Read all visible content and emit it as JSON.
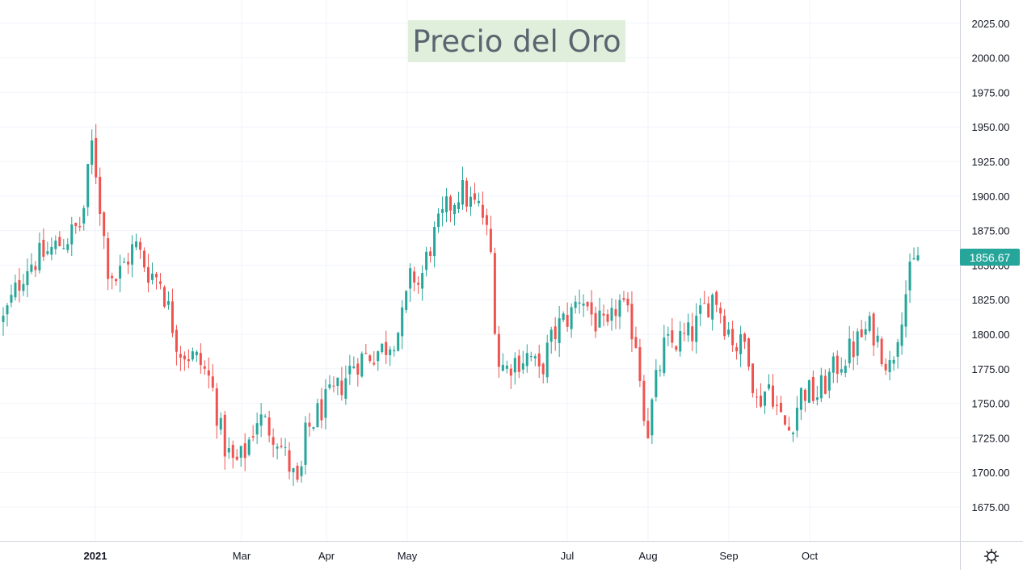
{
  "chart_data": {
    "type": "candlestick",
    "title": "Precio del Oro",
    "current_price": "1856.67",
    "x_tick_labels": [
      "2021",
      "Mar",
      "Apr",
      "May",
      "Jul",
      "Aug",
      "Sep",
      "Oct"
    ],
    "y_tick_labels": [
      "1675.00",
      "1700.00",
      "1725.00",
      "1750.00",
      "1775.00",
      "1800.00",
      "1825.00",
      "1850.00",
      "1875.00",
      "1900.00",
      "1925.00",
      "1950.00",
      "1975.00",
      "2000.00",
      "2025.00"
    ],
    "ylim": [
      1655,
      2040
    ],
    "grid": true,
    "colors": {
      "up": "#26a69a",
      "down": "#ef5350",
      "grid": "#f0f3fa",
      "axis_text": "#131722",
      "title_bg": "#e0efdc",
      "title_text": "#5a6570",
      "price_tag": "#26a69a"
    },
    "candle_count": 228,
    "close_anchors": [
      [
        0,
        1810
      ],
      [
        10,
        1850
      ],
      [
        20,
        1860
      ],
      [
        28,
        1870
      ],
      [
        34,
        1880
      ],
      [
        39,
        1945
      ],
      [
        40,
        1920
      ],
      [
        45,
        1850
      ],
      [
        49,
        1840
      ],
      [
        57,
        1865
      ],
      [
        63,
        1845
      ],
      [
        68,
        1840
      ],
      [
        76,
        1790
      ],
      [
        85,
        1780
      ],
      [
        90,
        1765
      ],
      [
        95,
        1722
      ],
      [
        100,
        1705
      ],
      [
        104,
        1712
      ],
      [
        110,
        1740
      ],
      [
        118,
        1728
      ],
      [
        125,
        1700
      ],
      [
        128,
        1685
      ],
      [
        131,
        1728
      ],
      [
        137,
        1745
      ],
      [
        145,
        1760
      ],
      [
        152,
        1780
      ],
      [
        158,
        1785
      ],
      [
        165,
        1790
      ],
      [
        172,
        1805
      ],
      [
        177,
        1845
      ],
      [
        180,
        1835
      ],
      [
        185,
        1865
      ],
      [
        192,
        1890
      ],
      [
        198,
        1905
      ],
      [
        202,
        1895
      ],
      [
        207,
        1890
      ],
      [
        211,
        1860
      ],
      [
        214,
        1780
      ],
      [
        218,
        1775
      ]
    ],
    "extra_anchors_second_half": [
      [
        220,
        1780
      ],
      [
        228,
        1785
      ],
      [
        232,
        1770
      ],
      [
        236,
        1790
      ],
      [
        240,
        1805
      ],
      [
        246,
        1815
      ],
      [
        250,
        1830
      ],
      [
        256,
        1810
      ],
      [
        262,
        1800
      ],
      [
        266,
        1825
      ],
      [
        272,
        1805
      ],
      [
        275,
        1790
      ],
      [
        276,
        1760
      ],
      [
        279,
        1730
      ],
      [
        282,
        1760
      ],
      [
        286,
        1790
      ],
      [
        292,
        1795
      ],
      [
        298,
        1800
      ],
      [
        304,
        1820
      ],
      [
        308,
        1830
      ],
      [
        312,
        1810
      ],
      [
        318,
        1790
      ],
      [
        322,
        1795
      ],
      [
        326,
        1750
      ],
      [
        332,
        1765
      ],
      [
        336,
        1740
      ],
      [
        340,
        1730
      ],
      [
        346,
        1760
      ],
      [
        352,
        1755
      ],
      [
        356,
        1765
      ],
      [
        362,
        1780
      ],
      [
        368,
        1790
      ],
      [
        372,
        1800
      ],
      [
        376,
        1805
      ],
      [
        380,
        1790
      ],
      [
        384,
        1775
      ],
      [
        388,
        1810
      ],
      [
        392,
        1840
      ],
      [
        396,
        1857
      ]
    ]
  }
}
